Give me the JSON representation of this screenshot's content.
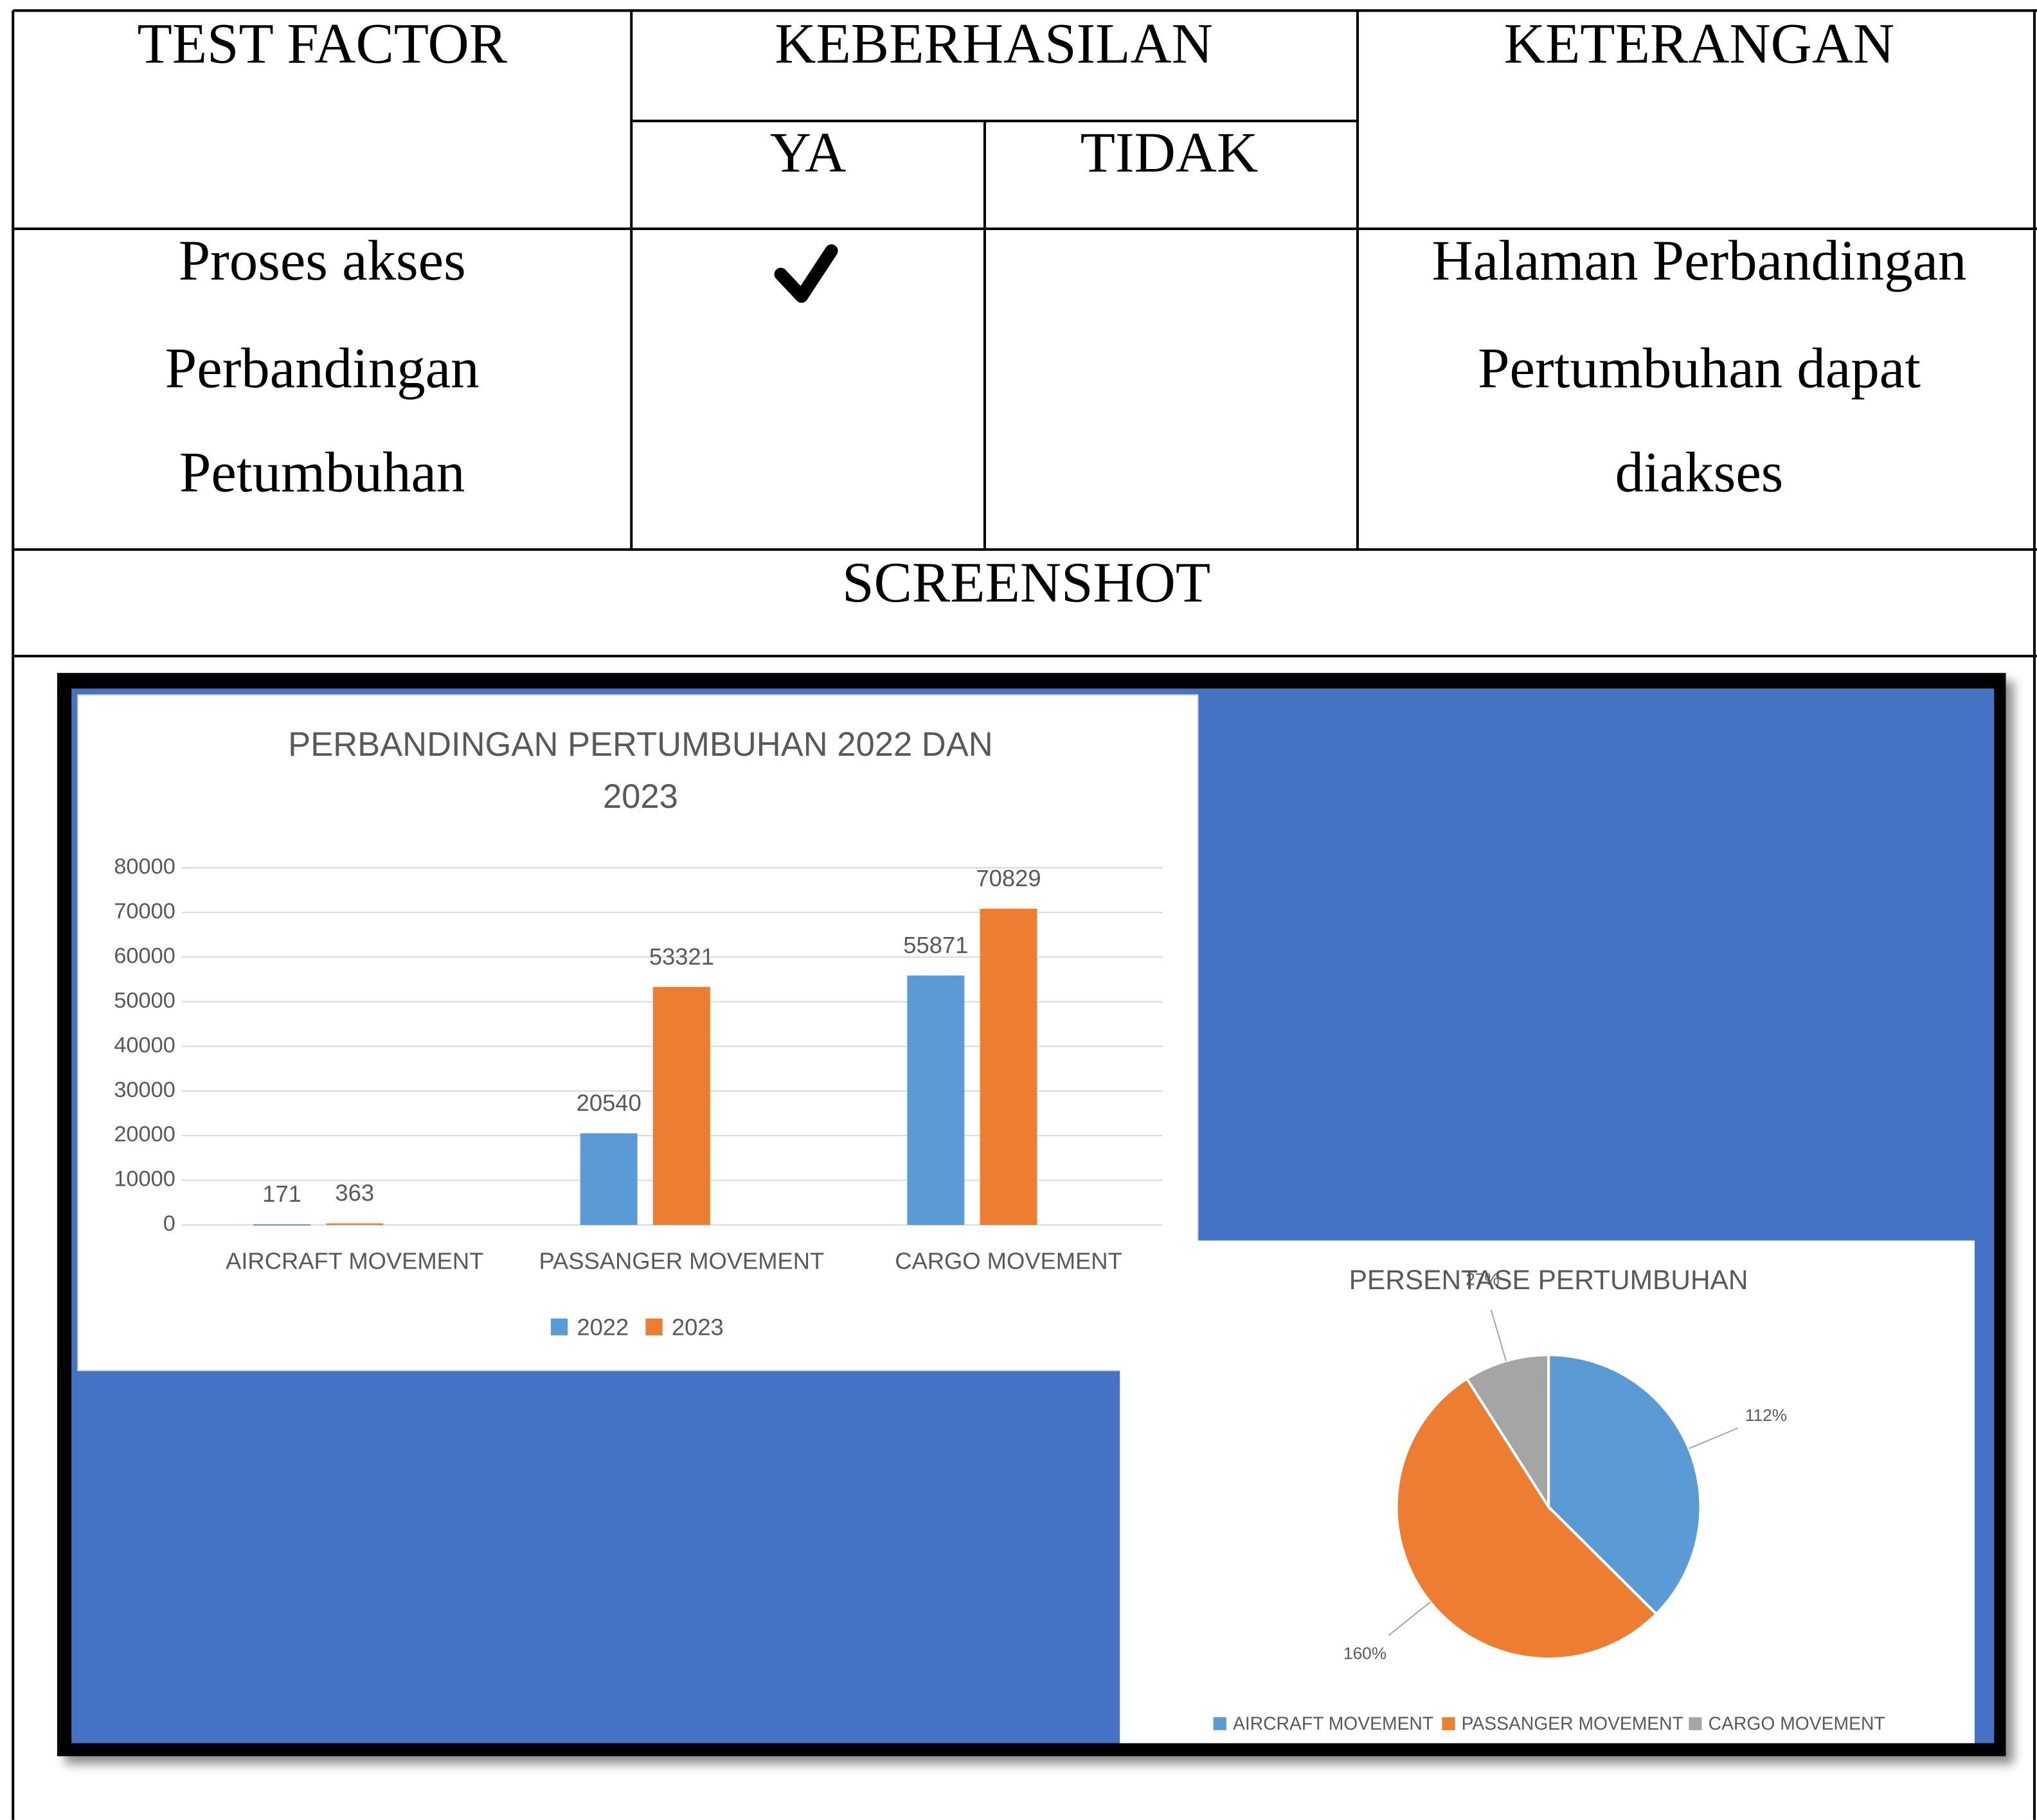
{
  "table": {
    "headers": [
      "TEST FACTOR",
      "KEBERHASILAN",
      "KETERANGAN"
    ],
    "subheaders": [
      "YA",
      "TIDAK"
    ],
    "rows": [
      {
        "test_factor": [
          "Proses akses",
          "Perbandingan",
          "Petumbuhan"
        ],
        "keterangan": [
          "Halaman Perbandingan",
          "Pertumbuhan dapat",
          "diakses"
        ]
      }
    ],
    "screenshot_label": "SCREENSHOT"
  },
  "screenshot": {
    "bar_chart": {
      "type": "bar",
      "title": [
        "PERBANDINGAN PERTUMBUHAN 2022 DAN",
        "2023"
      ],
      "categories": [
        "AIRCRAFT MOVEMENT",
        "PASSANGER MOVEMENT",
        "CARGO MOVEMENT"
      ],
      "series": [
        {
          "name": "2022",
          "color": "#5b9bd5",
          "values": [
            171,
            20540,
            55871
          ]
        },
        {
          "name": "2023",
          "color": "#ed7d31",
          "values": [
            363,
            53321,
            70829
          ]
        }
      ],
      "ylim": [
        0,
        80000
      ],
      "yticks": [
        0,
        10000,
        20000,
        30000,
        40000,
        50000,
        60000,
        70000,
        80000
      ],
      "grid": true
    },
    "pie_chart": {
      "type": "pie",
      "title": "PERSENTASE PERTUMBUHAN",
      "categories": [
        "AIRCRAFT MOVEMENT",
        "PASSANGER MOVEMENT",
        "CARGO MOVEMENT"
      ],
      "values": [
        112,
        160,
        27
      ],
      "value_labels": [
        "112%",
        "160%",
        "27%"
      ],
      "colors": [
        "#5b9bd5",
        "#ed7d31",
        "#a5a5a5"
      ]
    }
  }
}
